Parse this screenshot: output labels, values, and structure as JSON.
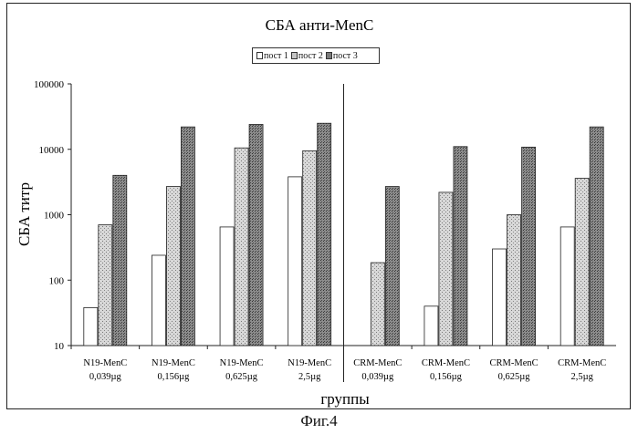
{
  "chart_data": {
    "type": "bar",
    "title": "СБА анти-MenC",
    "xlabel": "группы",
    "ylabel": "СБА титр",
    "y_scale": "log",
    "ylim": [
      10,
      100000
    ],
    "y_ticks": [
      "10",
      "100",
      "1000",
      "10000",
      "100000"
    ],
    "categories": [
      [
        "N19-MenC",
        "0,039µg"
      ],
      [
        "N19-MenC",
        "0,156µg"
      ],
      [
        "N19-MenC",
        "0,625µg"
      ],
      [
        "N19-MenC",
        "2,5µg"
      ],
      [
        "CRM-MenC",
        "0,039µg"
      ],
      [
        "CRM-MenC",
        "0,156µg"
      ],
      [
        "CRM-MenC",
        "0,625µg"
      ],
      [
        "CRM-MenC",
        "2,5µg"
      ]
    ],
    "series": [
      {
        "name": "пост 1",
        "color": "#ffffff",
        "values": [
          38,
          240,
          650,
          3800,
          10,
          40,
          300,
          650
        ]
      },
      {
        "name": "пост 2",
        "color": "#c4c4c4",
        "values": [
          700,
          2700,
          10500,
          9500,
          185,
          2200,
          1000,
          3600
        ]
      },
      {
        "name": "пост 3",
        "color": "#7a7a7a",
        "values": [
          4000,
          22000,
          24000,
          25000,
          2700,
          11000,
          10800,
          22000
        ]
      }
    ],
    "legend_position": "top-center",
    "grid": false
  },
  "caption": "Фиг.4"
}
